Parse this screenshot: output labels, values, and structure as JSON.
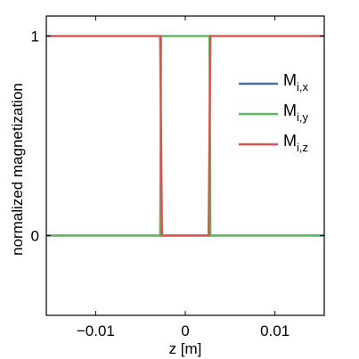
{
  "chart_data": {
    "type": "line",
    "title": "",
    "xlabel": "z [m]",
    "ylabel": "normalized magnetization",
    "xlim": [
      -0.0155,
      0.0155
    ],
    "ylim": [
      -0.4,
      1.1
    ],
    "x_ticks": [
      {
        "value": -0.01,
        "label": "−0.01"
      },
      {
        "value": 0,
        "label": "0"
      },
      {
        "value": 0.01,
        "label": "0.01"
      }
    ],
    "y_ticks": [
      {
        "value": 0,
        "label": "0"
      },
      {
        "value": 1,
        "label": "1"
      }
    ],
    "grid": false,
    "legend_position": "upper-right",
    "series": [
      {
        "name": "M",
        "subscript": "i,x",
        "color": "#4a6fa5",
        "x": [
          -0.0155,
          0.0155
        ],
        "y": [
          0,
          0
        ]
      },
      {
        "name": "M",
        "subscript": "i,y",
        "color": "#5cb85c",
        "x": [
          -0.0155,
          -0.0028,
          -0.0027,
          0.0027,
          0.0028,
          0.0155
        ],
        "y": [
          0,
          0,
          1,
          1,
          0,
          0
        ]
      },
      {
        "name": "M",
        "subscript": "i,z",
        "color": "#d9534f",
        "x": [
          -0.0155,
          -0.0028,
          -0.0026,
          0.0026,
          0.0028,
          0.0155
        ],
        "y": [
          1,
          1,
          0,
          0,
          1,
          1
        ]
      }
    ]
  }
}
